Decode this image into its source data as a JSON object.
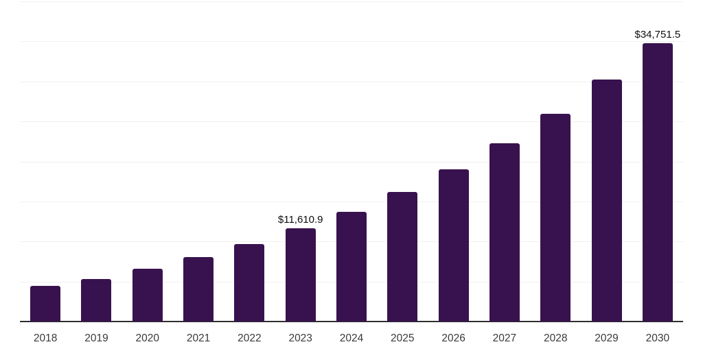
{
  "chart_data": {
    "type": "bar",
    "title": "",
    "xlabel": "",
    "ylabel": "",
    "categories": [
      "2018",
      "2019",
      "2020",
      "2021",
      "2022",
      "2023",
      "2024",
      "2025",
      "2026",
      "2027",
      "2028",
      "2029",
      "2030"
    ],
    "values": [
      4450,
      5310,
      6600,
      8050,
      9680,
      11610.9,
      13700,
      16190,
      19000,
      22270,
      25950,
      30230,
      34751.5
    ],
    "value_labels": [
      {
        "index": 5,
        "text": "$11,610.9"
      },
      {
        "index": 12,
        "text": "$34,751.5"
      }
    ],
    "ylim": [
      0,
      40000
    ],
    "gridline_interval": 5000,
    "grid_visible": true,
    "legend": "none",
    "colors": {
      "bar": "#38124e",
      "gridline": "#f0f0f1",
      "axis_line": "#2e2e2e",
      "tick_label": "#3a3a3a",
      "data_label": "#0d0d0d",
      "background": "#ffffff"
    }
  }
}
